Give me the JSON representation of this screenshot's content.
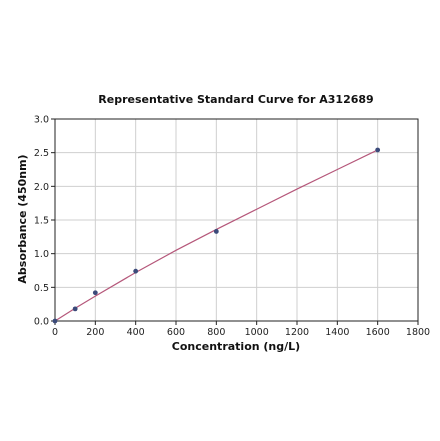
{
  "chart_data": {
    "type": "scatter",
    "title": "Representative Standard Curve for A312689",
    "xlabel": "Concentration (ng/L)",
    "ylabel": "Absorbance (450nm)",
    "xlim": [
      0,
      1800
    ],
    "ylim": [
      0,
      3.0
    ],
    "x_ticks": [
      "0",
      "200",
      "400",
      "600",
      "800",
      "1000",
      "1200",
      "1400",
      "1600",
      "1800"
    ],
    "x_tick_values": [
      0,
      200,
      400,
      600,
      800,
      1000,
      1200,
      1400,
      1600,
      1800
    ],
    "y_ticks": [
      "0.0",
      "0.5",
      "1.0",
      "1.5",
      "2.0",
      "2.5",
      "3.0"
    ],
    "y_tick_values": [
      0,
      0.5,
      1.0,
      1.5,
      2.0,
      2.5,
      3.0
    ],
    "grid": true,
    "series": [
      {
        "points": [
          {
            "x": 0,
            "y": 0.0
          },
          {
            "x": 100,
            "y": 0.18
          },
          {
            "x": 200,
            "y": 0.42
          },
          {
            "x": 400,
            "y": 0.74
          },
          {
            "x": 800,
            "y": 1.33
          },
          {
            "x": 1600,
            "y": 2.54
          }
        ],
        "curve": [
          {
            "x": 0,
            "y": 0.0
          },
          {
            "x": 100,
            "y": 0.19
          },
          {
            "x": 200,
            "y": 0.37
          },
          {
            "x": 400,
            "y": 0.72
          },
          {
            "x": 600,
            "y": 1.05
          },
          {
            "x": 800,
            "y": 1.36
          },
          {
            "x": 1000,
            "y": 1.66
          },
          {
            "x": 1200,
            "y": 1.96
          },
          {
            "x": 1400,
            "y": 2.25
          },
          {
            "x": 1600,
            "y": 2.54
          }
        ],
        "point_color": "#3b4a7a",
        "line_color": "#b5577a"
      }
    ]
  }
}
